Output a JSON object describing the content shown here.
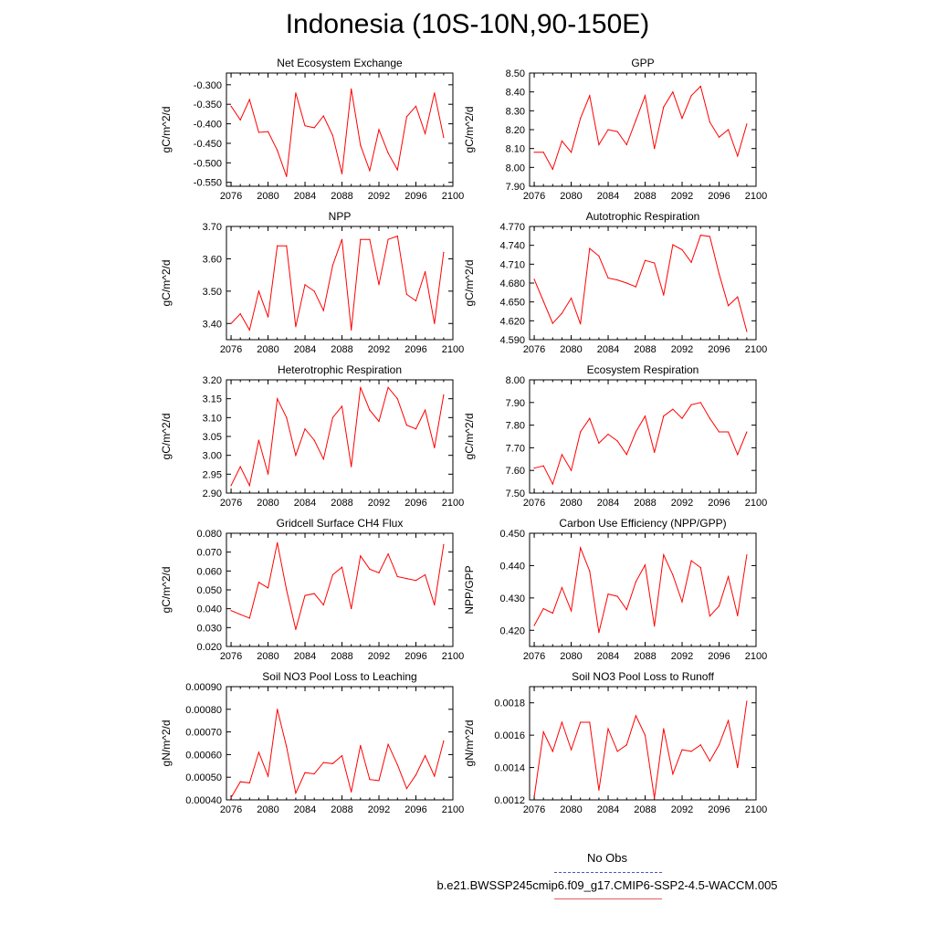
{
  "title": "Indonesia (10S-10N,90-150E)",
  "legend": {
    "entries": [
      {
        "label": "No Obs",
        "color": "#5050c8",
        "style": "dashed"
      },
      {
        "label": "b.e21.BWSSP245cmip6.f09_g17.CMIP6-SSP2-4.5-WACCM.005",
        "color": "#e06060",
        "style": "solid"
      }
    ]
  },
  "colors": {
    "series": "#ff0000",
    "axis": "#000000"
  },
  "chart_data": [
    {
      "type": "line",
      "title": "Net Ecosystem Exchange",
      "ylabel": "gC/m^2/d",
      "xlabel": "",
      "xlim": [
        2075.5,
        2100
      ],
      "xticks": [
        "2076",
        "2080",
        "2084",
        "2088",
        "2092",
        "2096",
        "2100"
      ],
      "ylim": [
        -0.56,
        -0.27
      ],
      "yticks": [
        "-0.300",
        "-0.350",
        "-0.400",
        "-0.450",
        "-0.500",
        "-0.550"
      ],
      "x": [
        2076,
        2077,
        2078,
        2079,
        2080,
        2081,
        2082,
        2083,
        2084,
        2085,
        2086,
        2087,
        2088,
        2089,
        2090,
        2091,
        2092,
        2093,
        2094,
        2095,
        2096,
        2097,
        2098,
        2099
      ],
      "series": [
        {
          "name": "b.e21.BWSSP245cmip6.f09_g17.CMIP6-SSP2-4.5-WACCM.005",
          "values": [
            -0.355,
            -0.39,
            -0.338,
            -0.422,
            -0.42,
            -0.468,
            -0.535,
            -0.321,
            -0.405,
            -0.41,
            -0.38,
            -0.43,
            -0.528,
            -0.311,
            -0.455,
            -0.52,
            -0.415,
            -0.475,
            -0.518,
            -0.382,
            -0.355,
            -0.425,
            -0.321,
            -0.435
          ]
        }
      ]
    },
    {
      "type": "line",
      "title": "GPP",
      "ylabel": "gC/m^2/d",
      "xlabel": "",
      "xlim": [
        2075.5,
        2100
      ],
      "xticks": [
        "2076",
        "2080",
        "2084",
        "2088",
        "2092",
        "2096",
        "2100"
      ],
      "ylim": [
        7.9,
        8.5
      ],
      "yticks": [
        "8.50",
        "8.40",
        "8.30",
        "8.20",
        "8.10",
        "8.00",
        "7.90"
      ],
      "x": [
        2076,
        2077,
        2078,
        2079,
        2080,
        2081,
        2082,
        2083,
        2084,
        2085,
        2086,
        2087,
        2088,
        2089,
        2090,
        2091,
        2092,
        2093,
        2094,
        2095,
        2096,
        2097,
        2098,
        2099
      ],
      "series": [
        {
          "name": "b.e21.BWSSP245cmip6.f09_g17.CMIP6-SSP2-4.5-WACCM.005",
          "values": [
            8.08,
            8.08,
            7.99,
            8.14,
            8.08,
            8.26,
            8.38,
            8.12,
            8.2,
            8.19,
            8.12,
            8.25,
            8.38,
            8.1,
            8.32,
            8.4,
            8.26,
            8.38,
            8.43,
            8.24,
            8.16,
            8.2,
            8.06,
            8.23
          ]
        }
      ]
    },
    {
      "type": "line",
      "title": "NPP",
      "ylabel": "gC/m^2/d",
      "xlabel": "",
      "xlim": [
        2075.5,
        2100
      ],
      "xticks": [
        "2076",
        "2080",
        "2084",
        "2088",
        "2092",
        "2096",
        "2100"
      ],
      "ylim": [
        3.35,
        3.7
      ],
      "yticks": [
        "3.70",
        "3.60",
        "3.50",
        "3.40"
      ],
      "x": [
        2076,
        2077,
        2078,
        2079,
        2080,
        2081,
        2082,
        2083,
        2084,
        2085,
        2086,
        2087,
        2088,
        2089,
        2090,
        2091,
        2092,
        2093,
        2094,
        2095,
        2096,
        2097,
        2098,
        2099
      ],
      "series": [
        {
          "name": "b.e21.BWSSP245cmip6.f09_g17.CMIP6-SSP2-4.5-WACCM.005",
          "values": [
            3.4,
            3.43,
            3.38,
            3.5,
            3.42,
            3.64,
            3.64,
            3.39,
            3.52,
            3.5,
            3.44,
            3.58,
            3.66,
            3.38,
            3.66,
            3.66,
            3.52,
            3.66,
            3.67,
            3.49,
            3.47,
            3.56,
            3.4,
            3.62
          ]
        }
      ]
    },
    {
      "type": "line",
      "title": "Autotrophic Respiration",
      "ylabel": "gC/m^2/d",
      "xlabel": "",
      "xlim": [
        2075.5,
        2100
      ],
      "xticks": [
        "2076",
        "2080",
        "2084",
        "2088",
        "2092",
        "2096",
        "2100"
      ],
      "ylim": [
        4.59,
        4.77
      ],
      "yticks": [
        "4.770",
        "4.740",
        "4.710",
        "4.680",
        "4.650",
        "4.620",
        "4.590"
      ],
      "x": [
        2076,
        2077,
        2078,
        2079,
        2080,
        2081,
        2082,
        2083,
        2084,
        2085,
        2086,
        2087,
        2088,
        2089,
        2090,
        2091,
        2092,
        2093,
        2094,
        2095,
        2096,
        2097,
        2098,
        2099
      ],
      "series": [
        {
          "name": "b.e21.BWSSP245cmip6.f09_g17.CMIP6-SSP2-4.5-WACCM.005",
          "values": [
            4.686,
            4.651,
            4.616,
            4.632,
            4.656,
            4.615,
            4.735,
            4.723,
            4.688,
            4.685,
            4.68,
            4.674,
            4.716,
            4.712,
            4.661,
            4.741,
            4.733,
            4.713,
            4.756,
            4.754,
            4.695,
            4.644,
            4.658,
            4.603
          ]
        }
      ]
    },
    {
      "type": "line",
      "title": "Heterotrophic Respiration",
      "ylabel": "gC/m^2/d",
      "xlabel": "",
      "xlim": [
        2075.5,
        2100
      ],
      "xticks": [
        "2076",
        "2080",
        "2084",
        "2088",
        "2092",
        "2096",
        "2100"
      ],
      "ylim": [
        2.9,
        3.2
      ],
      "yticks": [
        "3.20",
        "3.15",
        "3.10",
        "3.05",
        "3.00",
        "2.95",
        "2.90"
      ],
      "x": [
        2076,
        2077,
        2078,
        2079,
        2080,
        2081,
        2082,
        2083,
        2084,
        2085,
        2086,
        2087,
        2088,
        2089,
        2090,
        2091,
        2092,
        2093,
        2094,
        2095,
        2096,
        2097,
        2098,
        2099
      ],
      "series": [
        {
          "name": "b.e21.BWSSP245cmip6.f09_g17.CMIP6-SSP2-4.5-WACCM.005",
          "values": [
            2.92,
            2.97,
            2.92,
            3.04,
            2.95,
            3.15,
            3.1,
            3.0,
            3.07,
            3.04,
            2.99,
            3.1,
            3.13,
            2.97,
            3.18,
            3.12,
            3.09,
            3.18,
            3.15,
            3.08,
            3.07,
            3.12,
            3.02,
            3.16
          ]
        }
      ]
    },
    {
      "type": "line",
      "title": "Ecosystem Respiration",
      "ylabel": "gC/m^2/d",
      "xlabel": "",
      "xlim": [
        2075.5,
        2100
      ],
      "xticks": [
        "2076",
        "2080",
        "2084",
        "2088",
        "2092",
        "2096",
        "2100"
      ],
      "ylim": [
        7.5,
        8.0
      ],
      "yticks": [
        "8.00",
        "7.90",
        "7.80",
        "7.70",
        "7.60",
        "7.50"
      ],
      "x": [
        2076,
        2077,
        2078,
        2079,
        2080,
        2081,
        2082,
        2083,
        2084,
        2085,
        2086,
        2087,
        2088,
        2089,
        2090,
        2091,
        2092,
        2093,
        2094,
        2095,
        2096,
        2097,
        2098,
        2099
      ],
      "series": [
        {
          "name": "b.e21.BWSSP245cmip6.f09_g17.CMIP6-SSP2-4.5-WACCM.005",
          "values": [
            7.61,
            7.62,
            7.54,
            7.67,
            7.6,
            7.77,
            7.83,
            7.72,
            7.76,
            7.73,
            7.67,
            7.77,
            7.84,
            7.68,
            7.84,
            7.87,
            7.83,
            7.89,
            7.9,
            7.83,
            7.77,
            7.77,
            7.67,
            7.77
          ]
        }
      ]
    },
    {
      "type": "line",
      "title": "Gridcell Surface CH4 Flux",
      "ylabel": "gC/m^2/d",
      "xlabel": "",
      "xlim": [
        2075.5,
        2100
      ],
      "xticks": [
        "2076",
        "2080",
        "2084",
        "2088",
        "2092",
        "2096",
        "2100"
      ],
      "ylim": [
        0.02,
        0.08
      ],
      "yticks": [
        "0.080",
        "0.070",
        "0.060",
        "0.050",
        "0.040",
        "0.030",
        "0.020"
      ],
      "x": [
        2076,
        2077,
        2078,
        2079,
        2080,
        2081,
        2082,
        2083,
        2084,
        2085,
        2086,
        2087,
        2088,
        2089,
        2090,
        2091,
        2092,
        2093,
        2094,
        2095,
        2096,
        2097,
        2098,
        2099
      ],
      "series": [
        {
          "name": "b.e21.BWSSP245cmip6.f09_g17.CMIP6-SSP2-4.5-WACCM.005",
          "values": [
            0.039,
            0.037,
            0.035,
            0.054,
            0.051,
            0.075,
            0.05,
            0.029,
            0.047,
            0.048,
            0.042,
            0.058,
            0.062,
            0.04,
            0.068,
            0.061,
            0.059,
            0.069,
            0.057,
            0.056,
            0.055,
            0.058,
            0.042,
            0.074
          ]
        }
      ]
    },
    {
      "type": "line",
      "title": "Carbon Use Efficiency (NPP/GPP)",
      "ylabel": "NPP/GPP",
      "xlabel": "",
      "xlim": [
        2075.5,
        2100
      ],
      "xticks": [
        "2076",
        "2080",
        "2084",
        "2088",
        "2092",
        "2096",
        "2100"
      ],
      "ylim": [
        0.415,
        0.45
      ],
      "yticks": [
        "0.450",
        "0.440",
        "0.430",
        "0.420"
      ],
      "x": [
        2076,
        2077,
        2078,
        2079,
        2080,
        2081,
        2082,
        2083,
        2084,
        2085,
        2086,
        2087,
        2088,
        2089,
        2090,
        2091,
        2092,
        2093,
        2094,
        2095,
        2096,
        2097,
        2098,
        2099
      ],
      "series": [
        {
          "name": "b.e21.BWSSP245cmip6.f09_g17.CMIP6-SSP2-4.5-WACCM.005",
          "values": [
            0.4215,
            0.4267,
            0.4253,
            0.4332,
            0.426,
            0.4455,
            0.4383,
            0.4193,
            0.4312,
            0.4305,
            0.4264,
            0.435,
            0.4402,
            0.4213,
            0.4433,
            0.4371,
            0.4288,
            0.4415,
            0.4394,
            0.4244,
            0.4275,
            0.4366,
            0.4245,
            0.4433
          ]
        }
      ]
    },
    {
      "type": "line",
      "title": "Soil NO3 Pool Loss to Leaching",
      "ylabel": "gN/m^2/d",
      "xlabel": "",
      "xlim": [
        2075.5,
        2100
      ],
      "xticks": [
        "2076",
        "2080",
        "2084",
        "2088",
        "2092",
        "2096",
        "2100"
      ],
      "ylim": [
        0.0004,
        0.0009
      ],
      "yticks": [
        "0.00090",
        "0.00080",
        "0.00070",
        "0.00060",
        "0.00050",
        "0.00040"
      ],
      "x": [
        2076,
        2077,
        2078,
        2079,
        2080,
        2081,
        2082,
        2083,
        2084,
        2085,
        2086,
        2087,
        2088,
        2089,
        2090,
        2091,
        2092,
        2093,
        2094,
        2095,
        2096,
        2097,
        2098,
        2099
      ],
      "series": [
        {
          "name": "b.e21.BWSSP245cmip6.f09_g17.CMIP6-SSP2-4.5-WACCM.005",
          "values": [
            0.00041,
            0.00048,
            0.000475,
            0.00061,
            0.000505,
            0.0008,
            0.000635,
            0.00043,
            0.00052,
            0.000515,
            0.000565,
            0.00056,
            0.000595,
            0.000435,
            0.00064,
            0.00049,
            0.000485,
            0.000645,
            0.000555,
            0.00045,
            0.00051,
            0.000595,
            0.000505,
            0.00066
          ]
        }
      ]
    },
    {
      "type": "line",
      "title": "Soil NO3 Pool Loss to Runoff",
      "ylabel": "gN/m^2/d",
      "xlabel": "",
      "xlim": [
        2075.5,
        2100
      ],
      "xticks": [
        "2076",
        "2080",
        "2084",
        "2088",
        "2092",
        "2096",
        "2100"
      ],
      "ylim": [
        0.0012,
        0.0019
      ],
      "yticks": [
        "0.0018",
        "0.0016",
        "0.0014",
        "0.0012"
      ],
      "ytickvals": [
        0.0018,
        0.0016,
        0.0014,
        0.0012
      ],
      "x": [
        2076,
        2077,
        2078,
        2079,
        2080,
        2081,
        2082,
        2083,
        2084,
        2085,
        2086,
        2087,
        2088,
        2089,
        2090,
        2091,
        2092,
        2093,
        2094,
        2095,
        2096,
        2097,
        2098,
        2099
      ],
      "series": [
        {
          "name": "b.e21.BWSSP245cmip6.f09_g17.CMIP6-SSP2-4.5-WACCM.005",
          "values": [
            0.00122,
            0.00162,
            0.0015,
            0.00168,
            0.00151,
            0.00168,
            0.00168,
            0.00126,
            0.00164,
            0.0015,
            0.00154,
            0.00172,
            0.0016,
            0.00121,
            0.00164,
            0.00136,
            0.00151,
            0.0015,
            0.00154,
            0.00144,
            0.00154,
            0.00169,
            0.0014,
            0.00181
          ]
        }
      ]
    }
  ]
}
